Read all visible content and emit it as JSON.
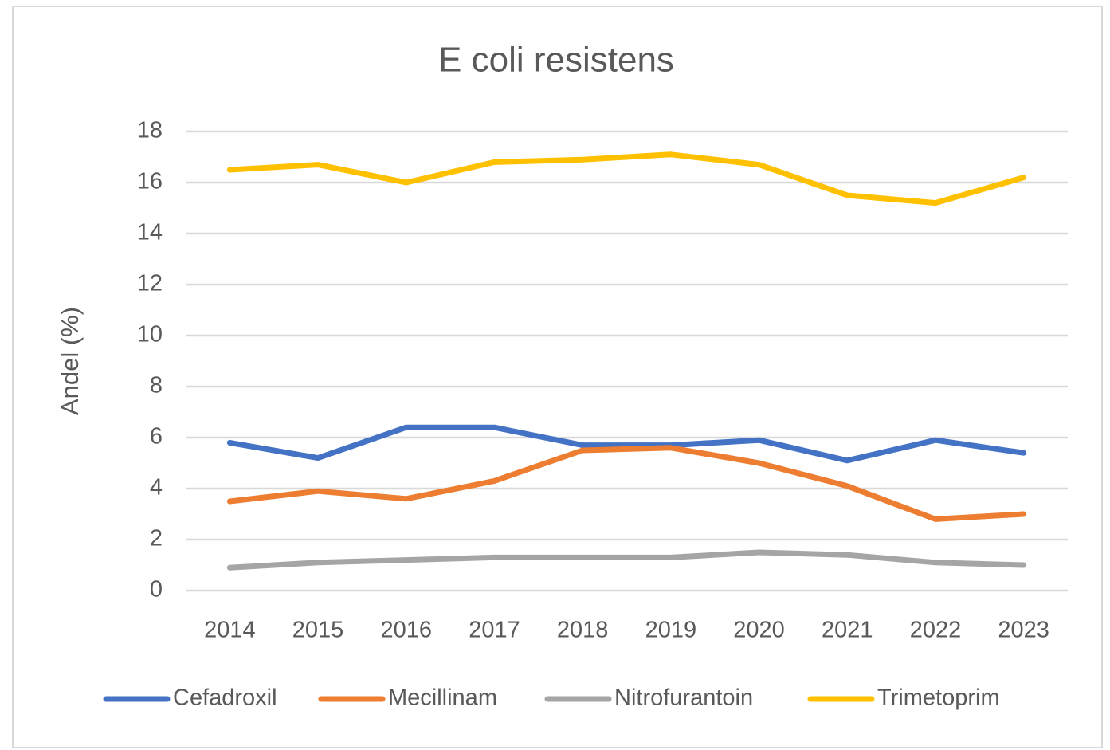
{
  "chart_data": {
    "type": "line",
    "title": "E coli resistens",
    "y_label": "Andel (%)",
    "categories": [
      "2014",
      "2015",
      "2016",
      "2017",
      "2018",
      "2019",
      "2020",
      "2021",
      "2022",
      "2023"
    ],
    "series": [
      {
        "name": "Cefadroxil",
        "color": "#4472c4",
        "values": [
          5.8,
          5.2,
          6.4,
          6.4,
          5.7,
          5.7,
          5.9,
          5.1,
          5.9,
          5.4
        ]
      },
      {
        "name": "Mecillinam",
        "color": "#ed7d31",
        "values": [
          3.5,
          3.9,
          3.6,
          4.3,
          5.5,
          5.6,
          5.0,
          4.1,
          2.8,
          3.0
        ]
      },
      {
        "name": "Nitrofurantoin",
        "color": "#a5a5a5",
        "values": [
          0.9,
          1.1,
          1.2,
          1.3,
          1.3,
          1.3,
          1.5,
          1.4,
          1.1,
          1.0
        ]
      },
      {
        "name": "Trimetoprim",
        "color": "#ffc000",
        "values": [
          16.5,
          16.7,
          16.0,
          16.8,
          16.9,
          17.1,
          16.7,
          15.5,
          15.2,
          16.2
        ]
      }
    ],
    "ylim": [
      0,
      18
    ],
    "yticks": [
      0,
      2,
      4,
      6,
      8,
      10,
      12,
      14,
      16,
      18
    ],
    "grid": true,
    "legend": "bottom"
  }
}
